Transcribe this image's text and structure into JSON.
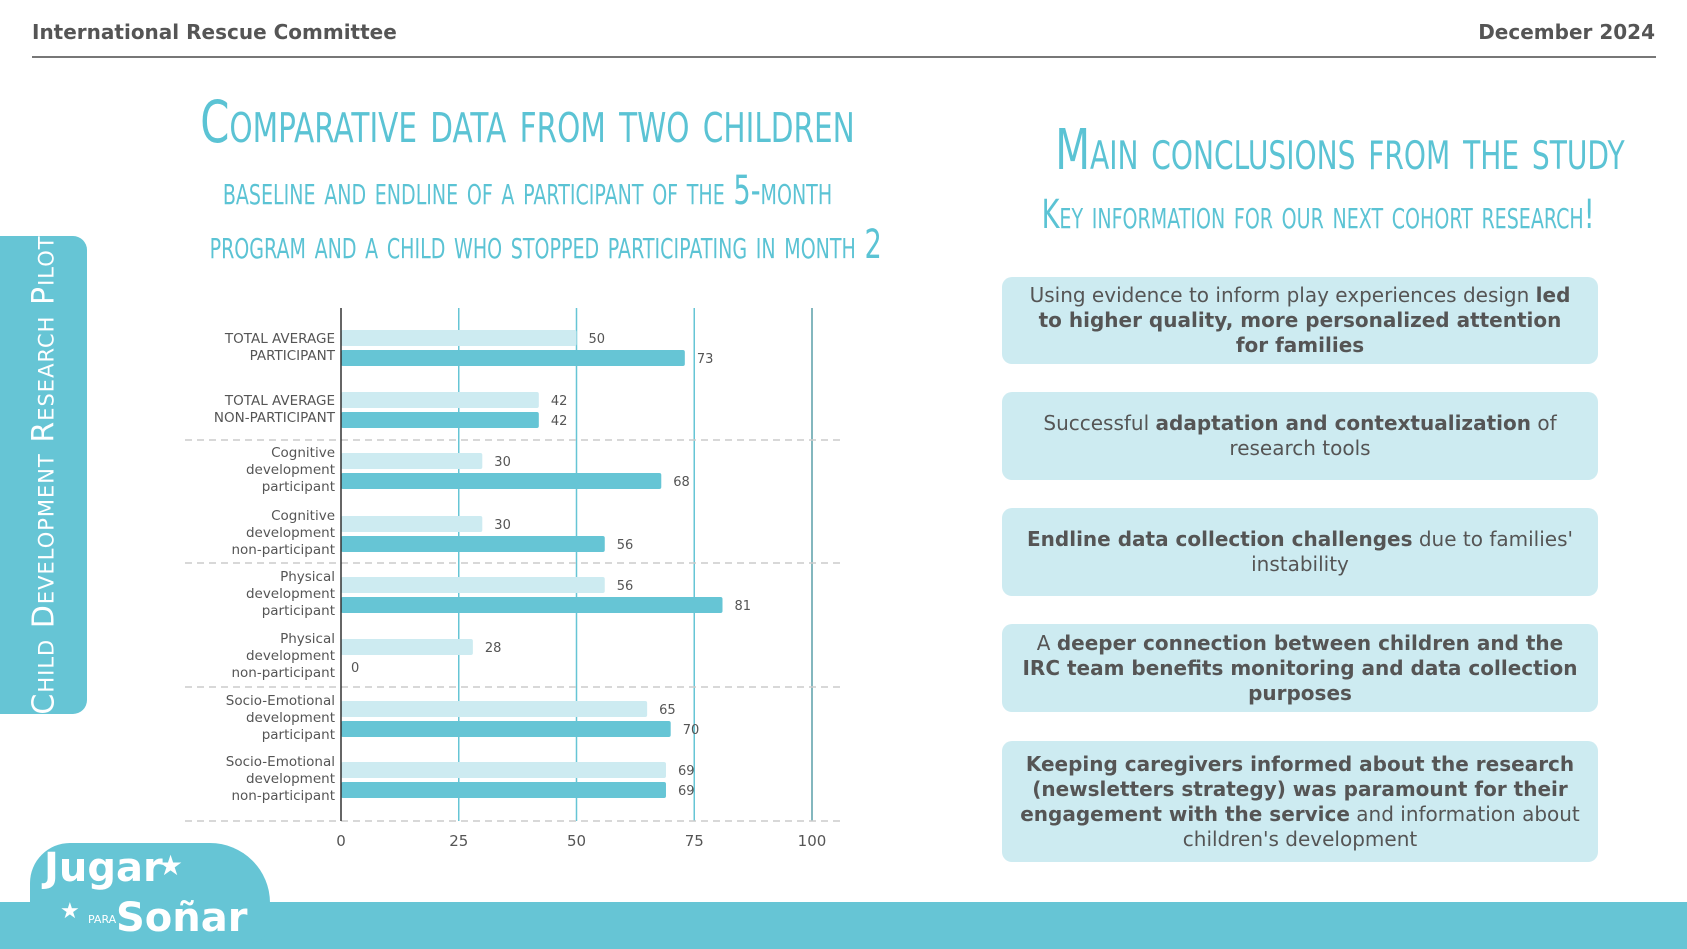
{
  "header": {
    "org": "International Rescue Committee",
    "date": "December 2024"
  },
  "side_tab": "Child Development Research Pilot",
  "left": {
    "title": "Comparative data from two children",
    "subtitle_line1": "baseline and endline of a participant of the 5-month",
    "subtitle_line2": "program and a child who stopped participating in month 2"
  },
  "right": {
    "title": "Main conclusions from the study",
    "subtitle": "Key information for our next cohort research!",
    "conclusions": [
      [
        {
          "t": "Using evidence to inform play experiences design ",
          "b": false
        },
        {
          "t": "led to higher quality, more personalized attention for families",
          "b": true
        }
      ],
      [
        {
          "t": "Successful ",
          "b": false
        },
        {
          "t": "adaptation and contextualization",
          "b": true
        },
        {
          "t": " of research tools",
          "b": false
        }
      ],
      [
        {
          "t": "Endline data collection challenges",
          "b": true
        },
        {
          "t": " due to families' instability",
          "b": false
        }
      ],
      [
        {
          "t": "A ",
          "b": false
        },
        {
          "t": "deeper connection between children and the IRC team benefits monitoring and data collection purposes",
          "b": true
        }
      ],
      [
        {
          "t": "Keeping caregivers informed about the research (newsletters strategy) was paramount for their engagement with the service",
          "b": true
        },
        {
          "t": " and information about children's development",
          "b": false
        }
      ]
    ]
  },
  "logo": {
    "line1": "Jugar",
    "para": "PARA",
    "line2": "Soñar"
  },
  "chart_data": {
    "type": "bar",
    "orientation": "horizontal",
    "grid": true,
    "xlim": [
      0,
      100
    ],
    "xticks": [
      "0",
      "25",
      "50",
      "75",
      "100"
    ],
    "categories": [
      "TOTAL AVERAGE PARTICIPANT",
      "TOTAL AVERAGE NON-PARTICIPANT",
      "Cognitive development participant",
      "Cognitive development non-participant",
      "Physical development participant",
      "Physical development non-participant",
      "Socio-Emotional development participant",
      "Socio-Emotional development non-participant"
    ],
    "series": [
      {
        "values": [
          50,
          42,
          30,
          30,
          56,
          28,
          65,
          69
        ],
        "color": "#cdebf1"
      },
      {
        "values": [
          73,
          42,
          68,
          56,
          81,
          0,
          70,
          69
        ],
        "color": "#66c5d5"
      }
    ]
  }
}
